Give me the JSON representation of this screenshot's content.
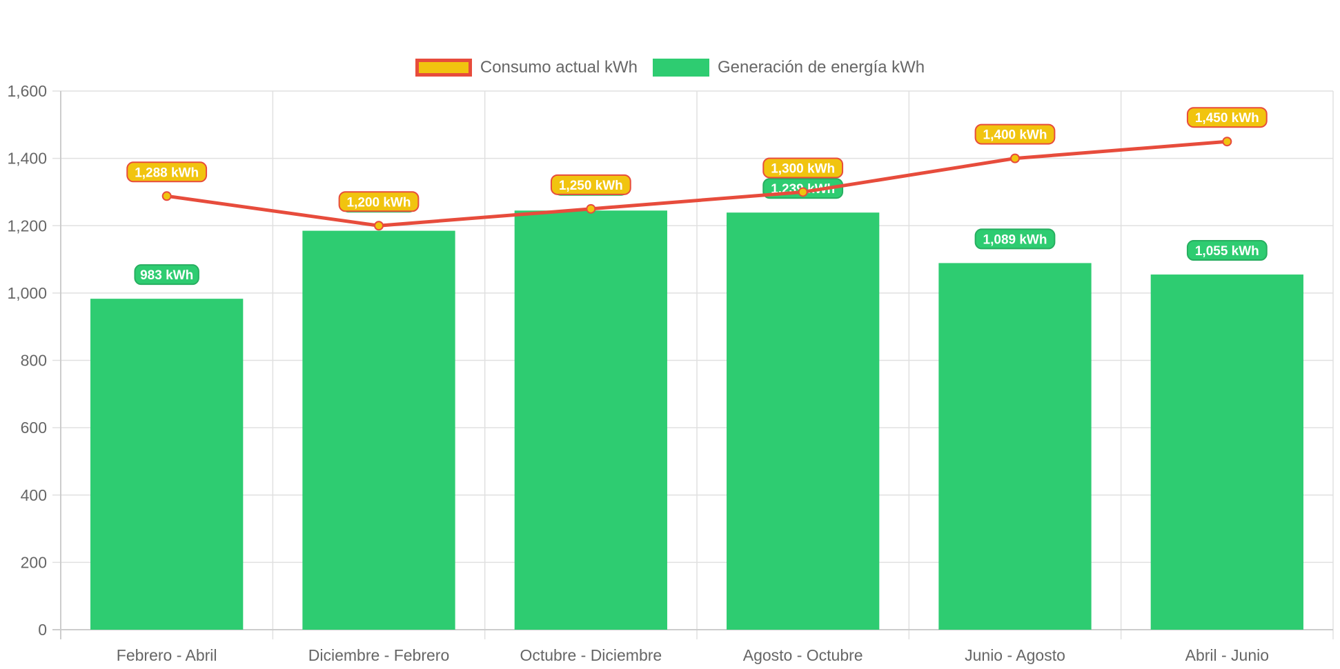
{
  "chart_data": {
    "type": "bar",
    "categories": [
      "Febrero - Abril",
      "Diciembre - Febrero",
      "Octubre - Diciembre",
      "Agosto - Octubre",
      "Junio - Agosto",
      "Abril - Junio"
    ],
    "series": [
      {
        "name": "Consumo actual kWh",
        "type": "line",
        "values": [
          1288,
          1200,
          1250,
          1300,
          1400,
          1450
        ],
        "labels": [
          "1,288 kWh",
          "1,200 kWh",
          "1,250 kWh",
          "1,300 kWh",
          "1,400 kWh",
          "1,450 kWh"
        ],
        "color": "#e74c3c",
        "fill": "#f1c40f"
      },
      {
        "name": "Generación de energía kWh",
        "type": "bar",
        "values": [
          983,
          1185,
          1245,
          1239,
          1089,
          1055
        ],
        "labels": [
          "983 kWh",
          "",
          "",
          "1,239 kWh",
          "1,089 kWh",
          "1,055 kWh"
        ],
        "color": "#2ecc71"
      }
    ],
    "ylim": [
      0,
      1600
    ],
    "yticks": [
      0,
      200,
      400,
      600,
      800,
      1000,
      1200,
      1400,
      1600
    ],
    "ytick_labels": [
      "0",
      "200",
      "400",
      "600",
      "800",
      "1,000",
      "1,200",
      "1,400",
      "1,600"
    ],
    "grid": true,
    "legend": "top-center"
  }
}
